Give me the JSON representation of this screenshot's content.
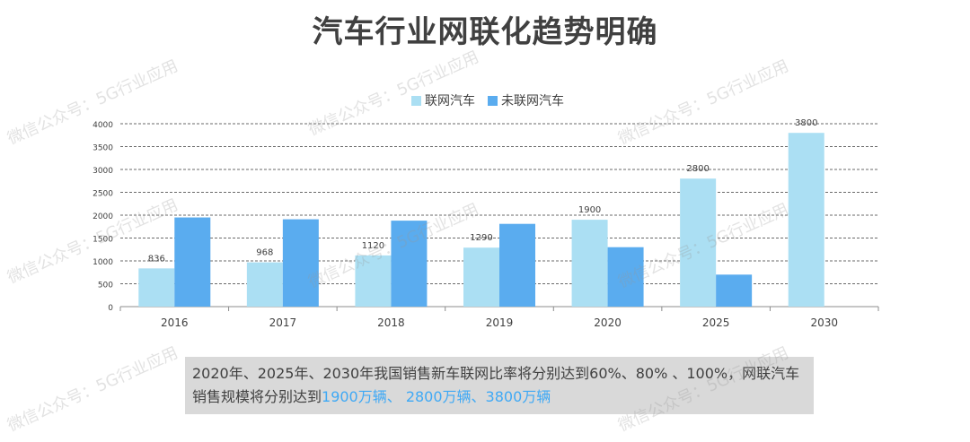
{
  "title": "汽车行业网联化趋势明确",
  "legend": {
    "connected": "联网汽车",
    "unconnected": "未联网汽车"
  },
  "colors": {
    "connected": "#abdff3",
    "unconnected": "#5aacef",
    "gridline": "#3a3a3a",
    "text": "#404040",
    "highlight": "#3fa9f5"
  },
  "chart_data": {
    "type": "bar",
    "categories": [
      "2016",
      "2017",
      "2018",
      "2019",
      "2020",
      "2025",
      "2030"
    ],
    "series": [
      {
        "name": "联网汽车",
        "values": [
          836,
          968,
          1120,
          1290,
          1900,
          2800,
          3800
        ],
        "labels": [
          "836",
          "968",
          "1120",
          "1290",
          "1900",
          "2800",
          "3800"
        ]
      },
      {
        "name": "未联网汽车",
        "values": [
          1950,
          1910,
          1880,
          1810,
          1300,
          700,
          0
        ]
      }
    ],
    "y_ticks": [
      "0",
      "500",
      "1000",
      "1500",
      "2000",
      "2500",
      "3000",
      "3500",
      "4000"
    ],
    "ylim": [
      0,
      4000
    ],
    "grid": true,
    "gridline_style": "dashed",
    "legend_position": "top-center"
  },
  "note": {
    "line1": "2020年、2025年、2030年我国销售新车联网比率将分别达到60%、80% 、100%，网联汽车",
    "line2_prefix": "销售规模将分别达到",
    "line2_highlight": "1900万辆、 2800万辆、3800万辆"
  },
  "watermark": "微信公众号：5G行业应用"
}
